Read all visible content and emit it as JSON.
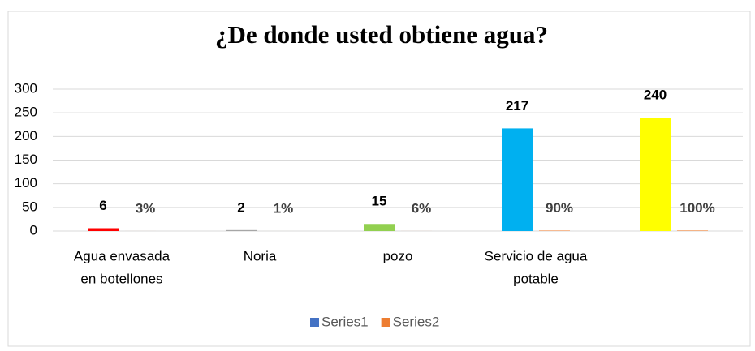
{
  "chart_data": {
    "type": "bar",
    "title": "¿De donde  usted obtiene agua?",
    "categories": [
      [
        "Agua envasada",
        "en botellones"
      ],
      [
        "Noria"
      ],
      [
        "pozo"
      ],
      [
        "Servicio de agua",
        "potable"
      ],
      null
    ],
    "series": [
      {
        "name": "Series1",
        "color": "#4472c4",
        "point_colors": [
          "#ff0000",
          "#a6a6a6",
          "#92d050",
          "#00b0f0",
          "#ffff00"
        ],
        "values": [
          6,
          2,
          15,
          217,
          240
        ]
      },
      {
        "name": "Series2",
        "color": "#ed7d31",
        "values": [
          0.03,
          0.01,
          0.06,
          0.9,
          1
        ],
        "value_labels": [
          "3%",
          "1%",
          "6%",
          "90%",
          "100%"
        ]
      }
    ],
    "ylim": [
      0,
      300
    ],
    "yticks": [
      0,
      50,
      100,
      150,
      200,
      250,
      300
    ],
    "grid": true,
    "legend": "bottom"
  }
}
